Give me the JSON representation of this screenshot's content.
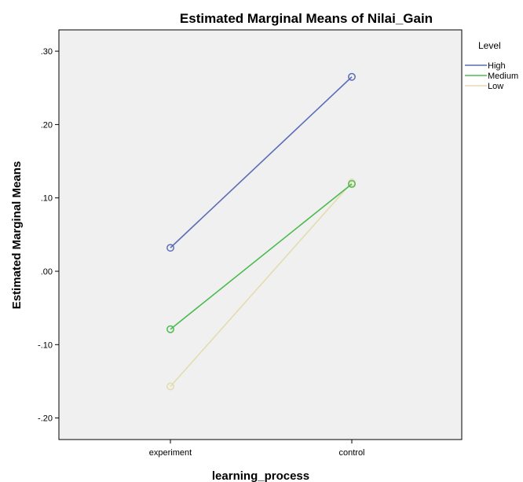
{
  "chart_data": {
    "type": "line",
    "title": "Estimated Marginal Means of Nilai_Gain",
    "xlabel": "learning_process",
    "ylabel": "Estimated Marginal Means",
    "categories": [
      "experiment",
      "control"
    ],
    "y_ticks": [
      0.3,
      0.2,
      0.1,
      0.0,
      -0.1,
      -0.2
    ],
    "y_tick_labels": [
      ".30",
      ".20",
      ".10",
      ".00",
      "-.10",
      "-.20"
    ],
    "ylim": [
      -0.23,
      0.325
    ],
    "grid": false,
    "legend_title": "Level",
    "legend_position": "right",
    "background": "#f0f0f0",
    "series": [
      {
        "name": "High",
        "values": [
          0.032,
          0.265
        ],
        "color": "#5b6db7"
      },
      {
        "name": "Medium",
        "values": [
          -0.079,
          0.119
        ],
        "color": "#4cbb4f"
      },
      {
        "name": "Low",
        "values": [
          -0.157,
          0.121
        ],
        "color": "#e3dcae"
      }
    ]
  }
}
